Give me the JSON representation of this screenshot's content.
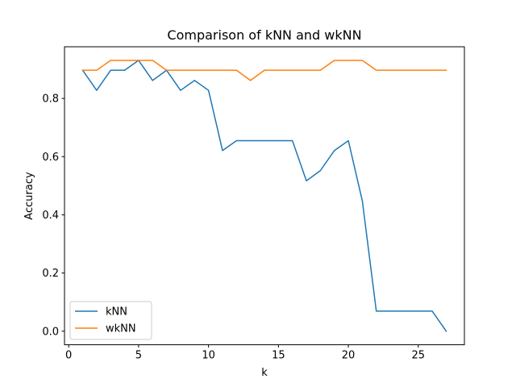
{
  "chart_data": {
    "type": "line",
    "title": "Comparison of kNN and wkNN",
    "xlabel": "k",
    "ylabel": "Accuracy",
    "xlim": [
      -0.3,
      28.3
    ],
    "ylim": [
      -0.0466,
      0.9778
    ],
    "xticks": [
      0,
      5,
      10,
      15,
      20,
      25
    ],
    "yticks": [
      0.0,
      0.2,
      0.4,
      0.6,
      0.8
    ],
    "ytick_labels": [
      "0.0",
      "0.2",
      "0.4",
      "0.6",
      "0.8"
    ],
    "xtick_labels": [
      "0",
      "5",
      "10",
      "15",
      "20",
      "25"
    ],
    "grid": false,
    "legend": "lower-left",
    "x": [
      1,
      2,
      3,
      4,
      5,
      6,
      7,
      8,
      9,
      10,
      11,
      12,
      13,
      14,
      15,
      16,
      17,
      18,
      19,
      20,
      21,
      22,
      23,
      24,
      25,
      26,
      27
    ],
    "series": [
      {
        "name": "kNN",
        "color": "#1f77b4",
        "values": [
          0.897,
          0.828,
          0.897,
          0.897,
          0.931,
          0.862,
          0.897,
          0.828,
          0.862,
          0.828,
          0.621,
          0.655,
          0.655,
          0.655,
          0.655,
          0.655,
          0.517,
          0.552,
          0.621,
          0.655,
          0.448,
          0.069,
          0.069,
          0.069,
          0.069,
          0.069,
          0.0
        ]
      },
      {
        "name": "wkNN",
        "color": "#ff7f0e",
        "values": [
          0.897,
          0.897,
          0.931,
          0.931,
          0.931,
          0.931,
          0.897,
          0.897,
          0.897,
          0.897,
          0.897,
          0.897,
          0.862,
          0.897,
          0.897,
          0.897,
          0.897,
          0.897,
          0.931,
          0.931,
          0.931,
          0.897,
          0.897,
          0.897,
          0.897,
          0.897,
          0.897
        ]
      }
    ]
  }
}
